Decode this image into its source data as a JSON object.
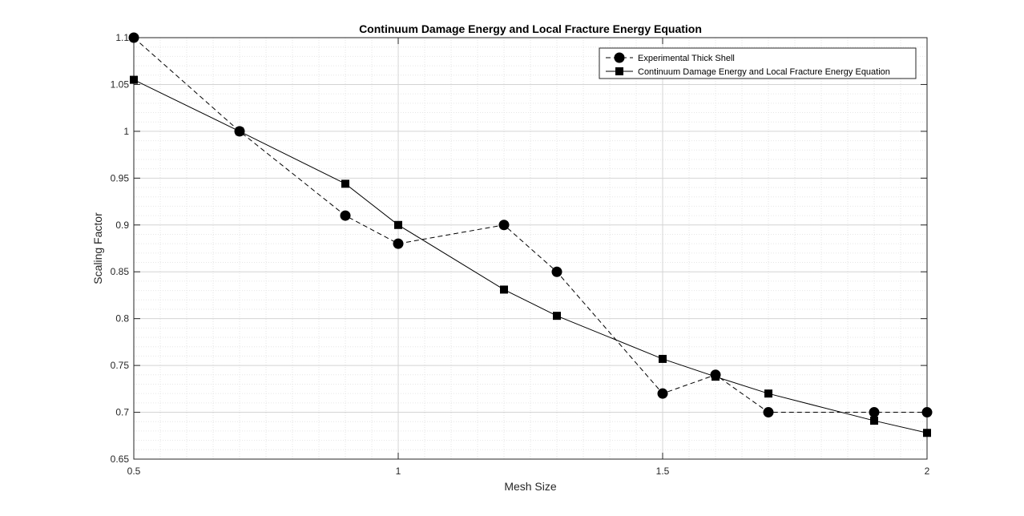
{
  "chart_data": {
    "type": "line",
    "title": "Continuum Damage Energy and Local Fracture Energy Equation",
    "xlabel": "Mesh Size",
    "ylabel": "Scaling Factor",
    "xlim": [
      0.5,
      2
    ],
    "ylim": [
      0.65,
      1.1
    ],
    "xticks": [
      0.5,
      1,
      1.5,
      2
    ],
    "xtick_labels": [
      "0.5",
      "1",
      "1.5",
      "2"
    ],
    "yticks": [
      0.65,
      0.7,
      0.75,
      0.8,
      0.85,
      0.9,
      0.95,
      1,
      1.05,
      1.1
    ],
    "ytick_labels": [
      "0.65",
      "0.7",
      "0.75",
      "0.8",
      "0.85",
      "0.9",
      "0.95",
      "1",
      "1.05",
      "1.1"
    ],
    "grid": true,
    "minor_grid": true,
    "legend_position": "top-right",
    "series": [
      {
        "name": "Experimental Thick Shell",
        "line_style": "dashed",
        "marker": "circle",
        "color": "#000000",
        "x": [
          0.5,
          0.7,
          0.9,
          1.0,
          1.2,
          1.3,
          1.5,
          1.6,
          1.7,
          1.9,
          2.0
        ],
        "y": [
          1.1,
          1.0,
          0.91,
          0.88,
          0.9,
          0.85,
          0.72,
          0.74,
          0.7,
          0.7,
          0.7
        ]
      },
      {
        "name": "Continuum Damage Energy and Local Fracture Energy Equation",
        "line_style": "solid",
        "marker": "square",
        "color": "#000000",
        "x": [
          0.5,
          0.7,
          0.9,
          1.0,
          1.2,
          1.3,
          1.5,
          1.6,
          1.7,
          1.9,
          2.0
        ],
        "y": [
          1.055,
          1.0,
          0.944,
          0.9,
          0.831,
          0.803,
          0.757,
          0.738,
          0.72,
          0.691,
          0.678
        ]
      }
    ]
  }
}
